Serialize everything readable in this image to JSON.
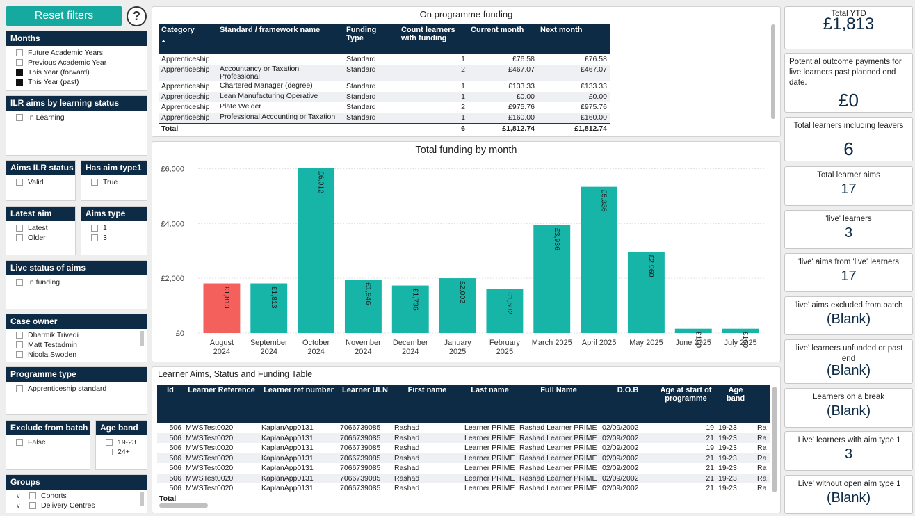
{
  "reset_label": "Reset filters",
  "help_glyph": "?",
  "filters": {
    "months": {
      "title": "Months",
      "items": [
        {
          "label": "Future Academic Years",
          "checked": false
        },
        {
          "label": "Previous Academic Year",
          "checked": false
        },
        {
          "label": "This Year (forward)",
          "checked": true
        },
        {
          "label": "This Year (past)",
          "checked": true
        }
      ]
    },
    "ilr_status": {
      "title": "ILR aims by learning status",
      "items": [
        {
          "label": "In Learning",
          "checked": false
        }
      ]
    },
    "aims_ilr": {
      "title": "Aims ILR status",
      "items": [
        {
          "label": "Valid",
          "checked": false
        }
      ]
    },
    "aim_type1": {
      "title": "Has aim type1",
      "items": [
        {
          "label": "True",
          "checked": false
        }
      ]
    },
    "latest_aim": {
      "title": "Latest aim",
      "items": [
        {
          "label": "Latest",
          "checked": false
        },
        {
          "label": "Older",
          "checked": false
        }
      ]
    },
    "aims_type": {
      "title": "Aims type",
      "items": [
        {
          "label": "1",
          "checked": false
        },
        {
          "label": "3",
          "checked": false
        }
      ]
    },
    "live_status": {
      "title": "Live status of aims",
      "items": [
        {
          "label": "In funding",
          "checked": false
        }
      ]
    },
    "case_owner": {
      "title": "Case owner",
      "items": [
        {
          "label": "Dharmik Trivedi",
          "checked": false
        },
        {
          "label": "Matt Testadmin",
          "checked": false
        },
        {
          "label": "Nicola Swoden",
          "checked": false
        }
      ]
    },
    "programme_type": {
      "title": "Programme type",
      "items": [
        {
          "label": "Apprenticeship standard",
          "checked": false
        }
      ]
    },
    "exclude_batch": {
      "title": "Exclude from batch",
      "items": [
        {
          "label": "False",
          "checked": false
        }
      ]
    },
    "age_band": {
      "title": "Age band",
      "items": [
        {
          "label": "19-23",
          "checked": false
        },
        {
          "label": "24+",
          "checked": false
        }
      ]
    },
    "groups": {
      "title": "Groups",
      "items": [
        {
          "label": "Cohorts",
          "checked": false
        },
        {
          "label": "Delivery Centres",
          "checked": false
        }
      ]
    }
  },
  "funding_table": {
    "title": "On programme funding",
    "columns": [
      "Category",
      "Standard / framework name",
      "Funding Type",
      "Count learners with funding",
      "Current month",
      "Next month"
    ],
    "sort_glyph": "⏶",
    "rows": [
      [
        "Apprenticeship",
        "",
        "Standard",
        "1",
        "£76.58",
        "£76.58"
      ],
      [
        "Apprenticeship",
        "Accountancy or Taxation Professional",
        "Standard",
        "2",
        "£467.07",
        "£467.07"
      ],
      [
        "Apprenticeship",
        "Chartered Manager (degree)",
        "Standard",
        "1",
        "£133.33",
        "£133.33"
      ],
      [
        "Apprenticeship",
        "Lean Manufacturing Operative",
        "Standard",
        "1",
        "£0.00",
        "£0.00"
      ],
      [
        "Apprenticeship",
        "Plate Welder",
        "Standard",
        "2",
        "£975.76",
        "£975.76"
      ],
      [
        "Apprenticeship",
        "Professional Accounting or Taxation",
        "Standard",
        "1",
        "£160.00",
        "£160.00"
      ]
    ],
    "total": [
      "Total",
      "",
      "",
      "6",
      "£1,812.74",
      "£1,812.74"
    ]
  },
  "chart_data": {
    "type": "bar",
    "title": "Total funding by month",
    "categories": [
      "August 2024",
      "September 2024",
      "October 2024",
      "November 2024",
      "December 2024",
      "January 2025",
      "February 2025",
      "March 2025",
      "April 2025",
      "May 2025",
      "June 2025",
      "July 2025"
    ],
    "values": [
      1813,
      1813,
      6012,
      1946,
      1736,
      2002,
      1602,
      3936,
      5336,
      2960,
      160,
      160
    ],
    "labels": [
      "£1,813",
      "£1,813",
      "£6,012",
      "£1,946",
      "£1,736",
      "£2,002",
      "£1,602",
      "£3,936",
      "£5,336",
      "£2,960",
      "£160",
      "£160"
    ],
    "highlight_index": 0,
    "y_ticks": [
      0,
      2000,
      4000,
      6000
    ],
    "y_tick_labels": [
      "£0",
      "£2,000",
      "£4,000",
      "£6,000"
    ],
    "ylim": [
      0,
      6012
    ],
    "colors": {
      "bar": "#17b5a8",
      "highlight": "#f4605c"
    }
  },
  "aims_table": {
    "title": "Learner Aims, Status and Funding Table",
    "columns": [
      "Id",
      "Learner Reference",
      "Learner ref number",
      "Learner ULN",
      "First name",
      "Last name",
      "Full Name",
      "D.O.B",
      "Age at start of programme",
      "Age band",
      ""
    ],
    "rows": [
      [
        "506",
        "MWSTest0020",
        "KaplanApp0131",
        "7066739085",
        "Rashad",
        "Learner PRIME",
        "Rashad Learner PRIME",
        "02/09/2002",
        "19",
        "19-23",
        "Ra"
      ],
      [
        "506",
        "MWSTest0020",
        "KaplanApp0131",
        "7066739085",
        "Rashad",
        "Learner PRIME",
        "Rashad Learner PRIME",
        "02/09/2002",
        "21",
        "19-23",
        "Ra"
      ],
      [
        "506",
        "MWSTest0020",
        "KaplanApp0131",
        "7066739085",
        "Rashad",
        "Learner PRIME",
        "Rashad Learner PRIME",
        "02/09/2002",
        "19",
        "19-23",
        "Ra"
      ],
      [
        "506",
        "MWSTest0020",
        "KaplanApp0131",
        "7066739085",
        "Rashad",
        "Learner PRIME",
        "Rashad Learner PRIME",
        "02/09/2002",
        "21",
        "19-23",
        "Ra"
      ],
      [
        "506",
        "MWSTest0020",
        "KaplanApp0131",
        "7066739085",
        "Rashad",
        "Learner PRIME",
        "Rashad Learner PRIME",
        "02/09/2002",
        "21",
        "19-23",
        "Ra"
      ],
      [
        "506",
        "MWSTest0020",
        "KaplanApp0131",
        "7066739085",
        "Rashad",
        "Learner PRIME",
        "Rashad Learner PRIME",
        "02/09/2002",
        "21",
        "19-23",
        "Ra"
      ],
      [
        "506",
        "MWSTest0020",
        "KaplanApp0131",
        "7066739085",
        "Rashad",
        "Learner PRIME",
        "Rashad Learner PRIME",
        "02/09/2002",
        "21",
        "19-23",
        "Ra"
      ]
    ],
    "total_label": "Total"
  },
  "cards": [
    {
      "label": "Total YTD",
      "value": "£1,813"
    },
    {
      "label": "Potential outcome payments for live learners past planned end date.",
      "value": "£0"
    },
    {
      "label": "Total learners including leavers",
      "value": "6"
    },
    {
      "label": "Total learner aims",
      "value": "17"
    },
    {
      "label": "'live' learners",
      "value": "3"
    },
    {
      "label": "'live' aims from 'live' learners",
      "value": "17"
    },
    {
      "label": "'live' aims excluded from batch",
      "value": "(Blank)"
    },
    {
      "label": "'live' learners unfunded or past end",
      "value": "(Blank)"
    },
    {
      "label": "Learners on a break",
      "value": "(Blank)"
    },
    {
      "label": "'Live' learners with aim type 1",
      "value": "3"
    },
    {
      "label": "'Live' without open aim type 1",
      "value": "(Blank)"
    }
  ]
}
